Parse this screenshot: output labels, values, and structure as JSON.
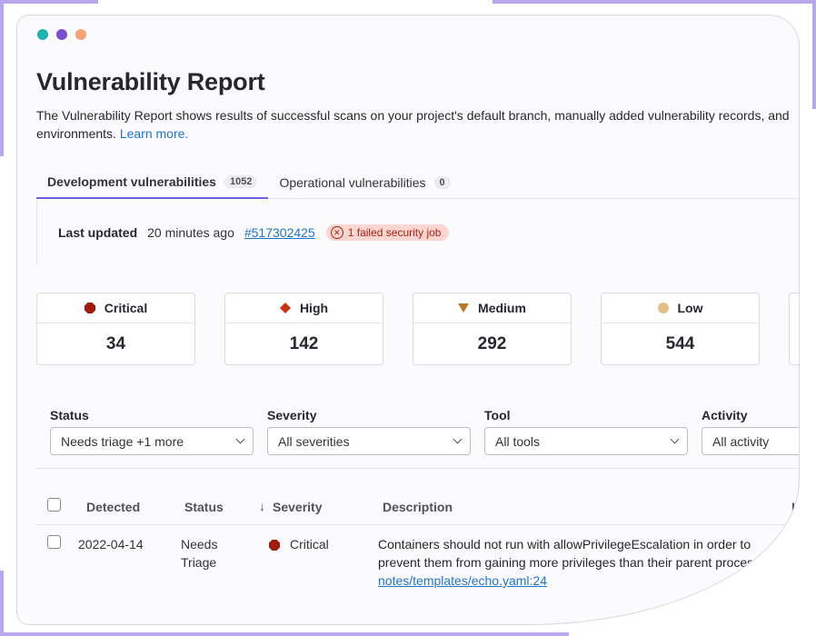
{
  "window": {
    "dot_colors": [
      "#1fb2b0",
      "#7c4fcf",
      "#f4a37a"
    ]
  },
  "header": {
    "title": "Vulnerability Report",
    "description": "The Vulnerability Report shows results of successful scans on your project's default branch, manually added vulnerability records, and",
    "description_line2": "environments.",
    "learn_more": "Learn more."
  },
  "tabs": [
    {
      "label": "Development vulnerabilities",
      "count": "1052",
      "active": true
    },
    {
      "label": "Operational vulnerabilities",
      "count": "0",
      "active": false
    }
  ],
  "status_bar": {
    "last_updated_label": "Last updated",
    "last_updated_value": "20 minutes ago",
    "pipeline_link": "#517302425",
    "failed_badge": "1 failed security job"
  },
  "severity_cards": [
    {
      "label": "Critical",
      "count": "34",
      "color": "#9e1c10",
      "icon": "octagon-icon"
    },
    {
      "label": "High",
      "count": "142",
      "color": "#c4320f",
      "icon": "diamond-icon"
    },
    {
      "label": "Medium",
      "count": "292",
      "color": "#b67826",
      "icon": "triangle-down-icon"
    },
    {
      "label": "Low",
      "count": "544",
      "color": "#e3c088",
      "icon": "circle-icon"
    }
  ],
  "filters": [
    {
      "label": "Status",
      "value": "Needs triage +1 more"
    },
    {
      "label": "Severity",
      "value": "All severities"
    },
    {
      "label": "Tool",
      "value": "All tools"
    },
    {
      "label": "Activity",
      "value": "All activity"
    }
  ],
  "table": {
    "headers": {
      "detected": "Detected",
      "status": "Status",
      "sort_arrow": "↓",
      "severity": "Severity",
      "description": "Description",
      "identifier": "Id"
    },
    "rows": [
      {
        "detected": "2022-04-14",
        "status_line1": "Needs",
        "status_line2": "Triage",
        "severity": "Critical",
        "description": "Containers should not run with allowPrivilegeEscalation in order to prevent them from gaining more privileges than their parent proces s",
        "location": "notes/templates/echo.yaml:24"
      }
    ]
  }
}
